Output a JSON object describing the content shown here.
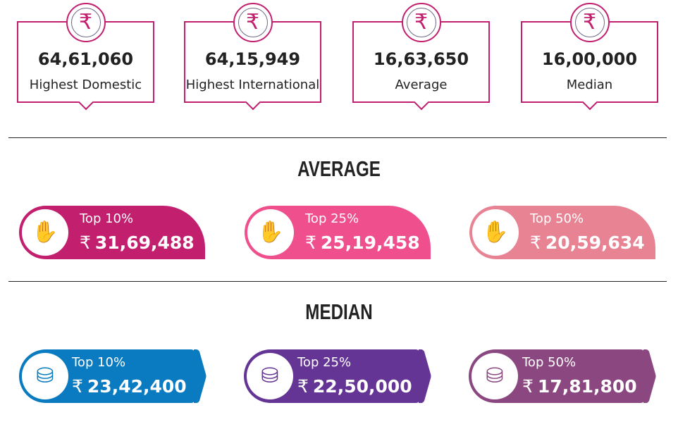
{
  "stats": [
    {
      "value": "64,61,060",
      "label": "Highest Domestic",
      "icon": "rupee-icon"
    },
    {
      "value": "64,15,949",
      "label": "Highest International",
      "icon": "rupee-icon"
    },
    {
      "value": "16,63,650",
      "label": "Average",
      "icon": "rupee-icon"
    },
    {
      "value": "16,00,000",
      "label": "Median",
      "icon": "rupee-icon"
    }
  ],
  "currency_symbol": "₹",
  "average": {
    "heading": "AVERAGE",
    "items": [
      {
        "label": "Top 10%",
        "value": "31,69,488",
        "color": "#c21f6e"
      },
      {
        "label": "Top 25%",
        "value": "25,19,458",
        "color": "#ef4f8c"
      },
      {
        "label": "Top 50%",
        "value": "20,59,634",
        "color": "#e88394"
      }
    ]
  },
  "median": {
    "heading": "MEDIAN",
    "items": [
      {
        "label": "Top 10%",
        "value": "23,42,400",
        "color": "#0a7bc0"
      },
      {
        "label": "Top 25%",
        "value": "22,50,000",
        "color": "#653595"
      },
      {
        "label": "Top 50%",
        "value": "17,81,800",
        "color": "#8b4880"
      }
    ]
  }
}
